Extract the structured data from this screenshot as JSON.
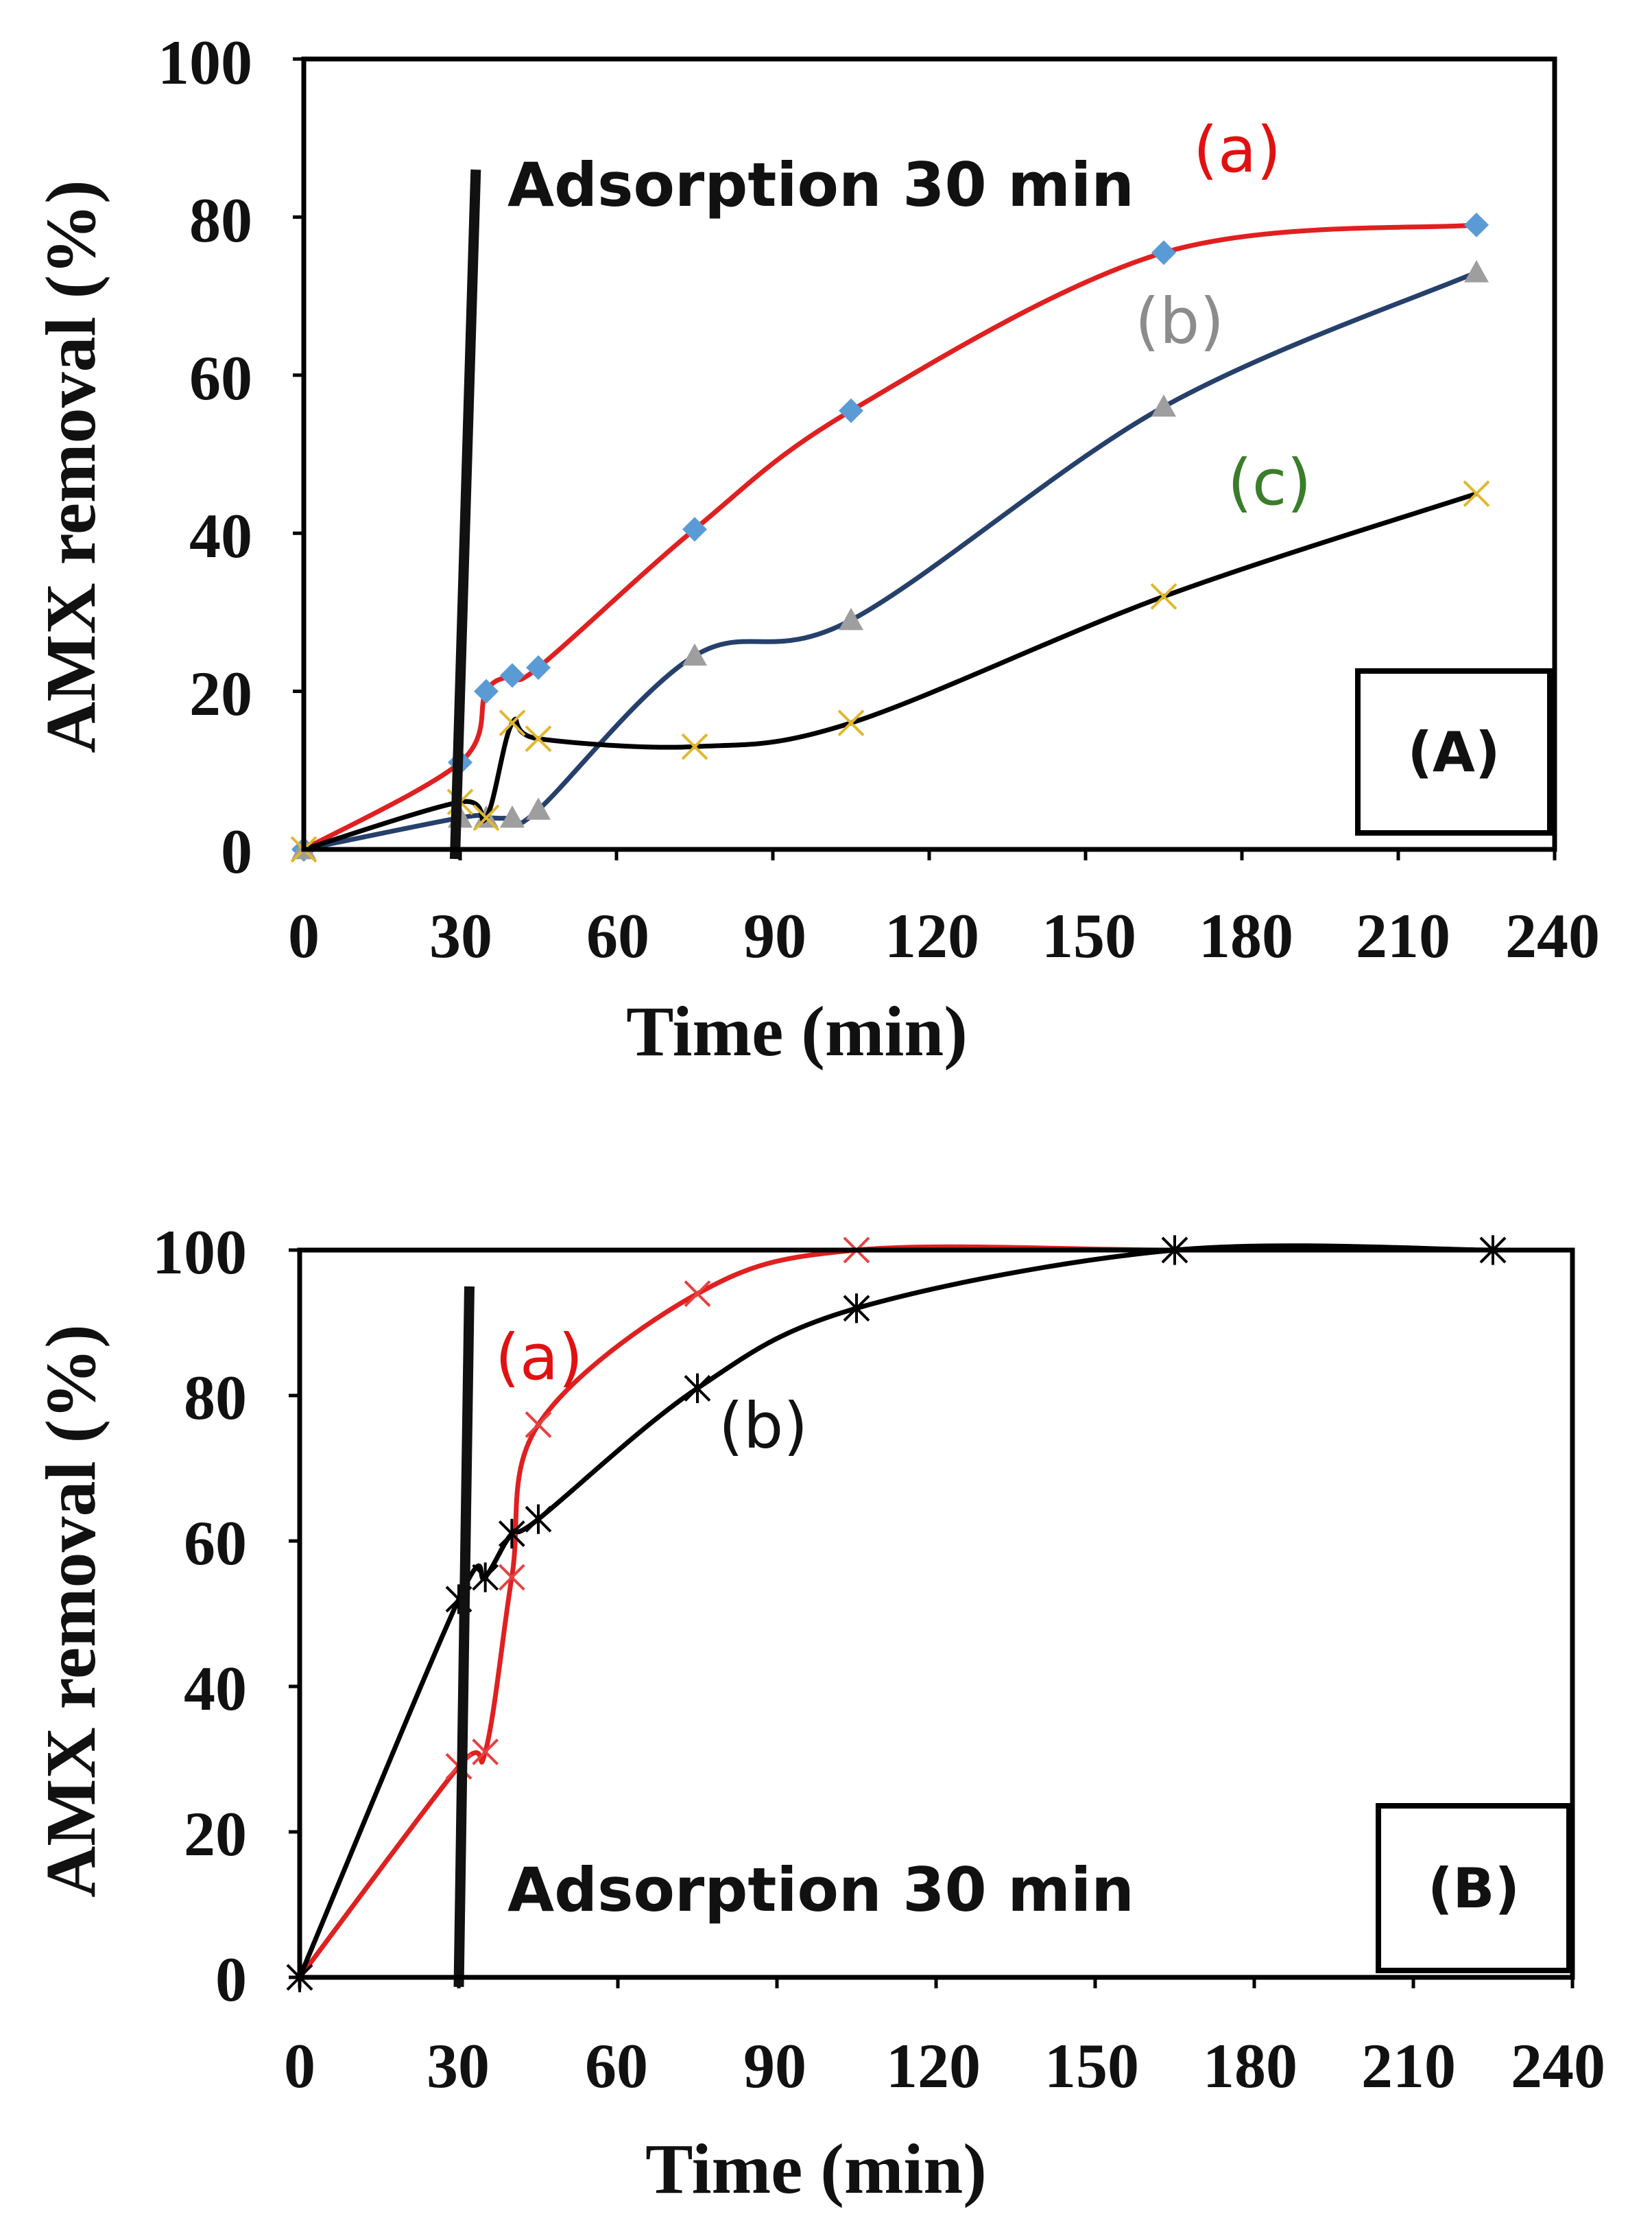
{
  "chart_data": [
    {
      "type": "line",
      "panel_label": "(A)",
      "xlabel": "Time (min)",
      "ylabel": "AMX removal (%)",
      "xlim": [
        0,
        240
      ],
      "ylim": [
        0,
        100
      ],
      "x_ticks": [
        "0",
        "30",
        "60",
        "90",
        "120",
        "150",
        "180",
        "210",
        "240"
      ],
      "y_ticks": [
        "0",
        "20",
        "40",
        "60",
        "80",
        "100"
      ],
      "grid": false,
      "annotation": {
        "text": "Adsorption 30 min",
        "marker_line": {
          "x_bottom": 29,
          "x_top": 33,
          "y_bottom": 0,
          "y_top": 86
        }
      },
      "series": [
        {
          "name": "(a)",
          "label_color": "#e11111",
          "line_color": "#e02020",
          "marker": "diamond",
          "marker_color": "#5b9bd5",
          "x": [
            0,
            30,
            35,
            40,
            45,
            75,
            105,
            165,
            225
          ],
          "y": [
            0,
            11,
            20,
            22,
            23,
            40.5,
            55.5,
            75.5,
            79
          ]
        },
        {
          "name": "(b)",
          "label_color": "#8c8c8c",
          "line_color": "#26406b",
          "marker": "triangle",
          "marker_color": "#9e9e9e",
          "x": [
            0,
            30,
            35,
            40,
            45,
            75,
            105,
            165,
            225
          ],
          "y": [
            0,
            4,
            4,
            4,
            5,
            24.5,
            29,
            56,
            73
          ]
        },
        {
          "name": "(c)",
          "label_color": "#3a7d2a",
          "line_color": "#000000",
          "marker": "x",
          "marker_color": "#e0b82e",
          "x": [
            0,
            30,
            35,
            40,
            45,
            75,
            105,
            165,
            225
          ],
          "y": [
            0,
            6,
            4,
            16,
            14,
            13,
            16,
            32,
            45
          ]
        }
      ]
    },
    {
      "type": "line",
      "panel_label": "(B)",
      "xlabel": "Time (min)",
      "ylabel": "AMX removal (%)",
      "xlim": [
        0,
        240
      ],
      "ylim": [
        0,
        100
      ],
      "x_ticks": [
        "0",
        "30",
        "60",
        "90",
        "120",
        "150",
        "180",
        "210",
        "240"
      ],
      "y_ticks": [
        "0",
        "20",
        "40",
        "60",
        "80",
        "100"
      ],
      "grid": false,
      "annotation": {
        "text": "Adsorption 30 min",
        "marker_line": {
          "x_bottom": 30,
          "x_top": 32,
          "y_bottom": 0,
          "y_top": 95
        }
      },
      "series": [
        {
          "name": "(a)",
          "label_color": "#e11111",
          "line_color": "#e02020",
          "marker": "x",
          "marker_color": "#e84040",
          "x": [
            0,
            30,
            35,
            40,
            45,
            75,
            105,
            165,
            225
          ],
          "y": [
            0,
            29,
            31,
            55,
            76,
            94,
            100,
            100,
            100
          ]
        },
        {
          "name": "(b)",
          "label_color": "#111111",
          "line_color": "#000000",
          "marker": "asterisk",
          "marker_color": "#000000",
          "x": [
            0,
            30,
            35,
            40,
            45,
            75,
            105,
            165,
            225
          ],
          "y": [
            0,
            52,
            55,
            61,
            63,
            81,
            92,
            100,
            100
          ]
        }
      ]
    }
  ]
}
